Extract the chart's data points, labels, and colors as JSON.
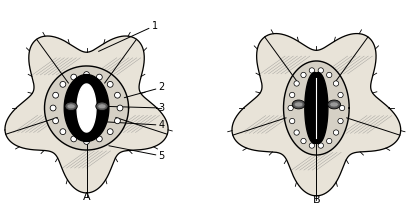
{
  "fig_width": 4.19,
  "fig_height": 2.16,
  "dpi": 100,
  "bg_color": "#ffffff",
  "outer_cell_fill": "#e8e3d8",
  "inner_ring_fill": "#ddd8cc",
  "guard_fill": "#000000",
  "pore_fill": "#ffffff",
  "chloroplast_dark": "#444444",
  "chloroplast_light": "#888888",
  "small_circle_fill": "#ffffff",
  "label_A": "A",
  "label_B": "B",
  "annotation_labels": [
    "1",
    "2",
    "3",
    "4",
    "5"
  ]
}
